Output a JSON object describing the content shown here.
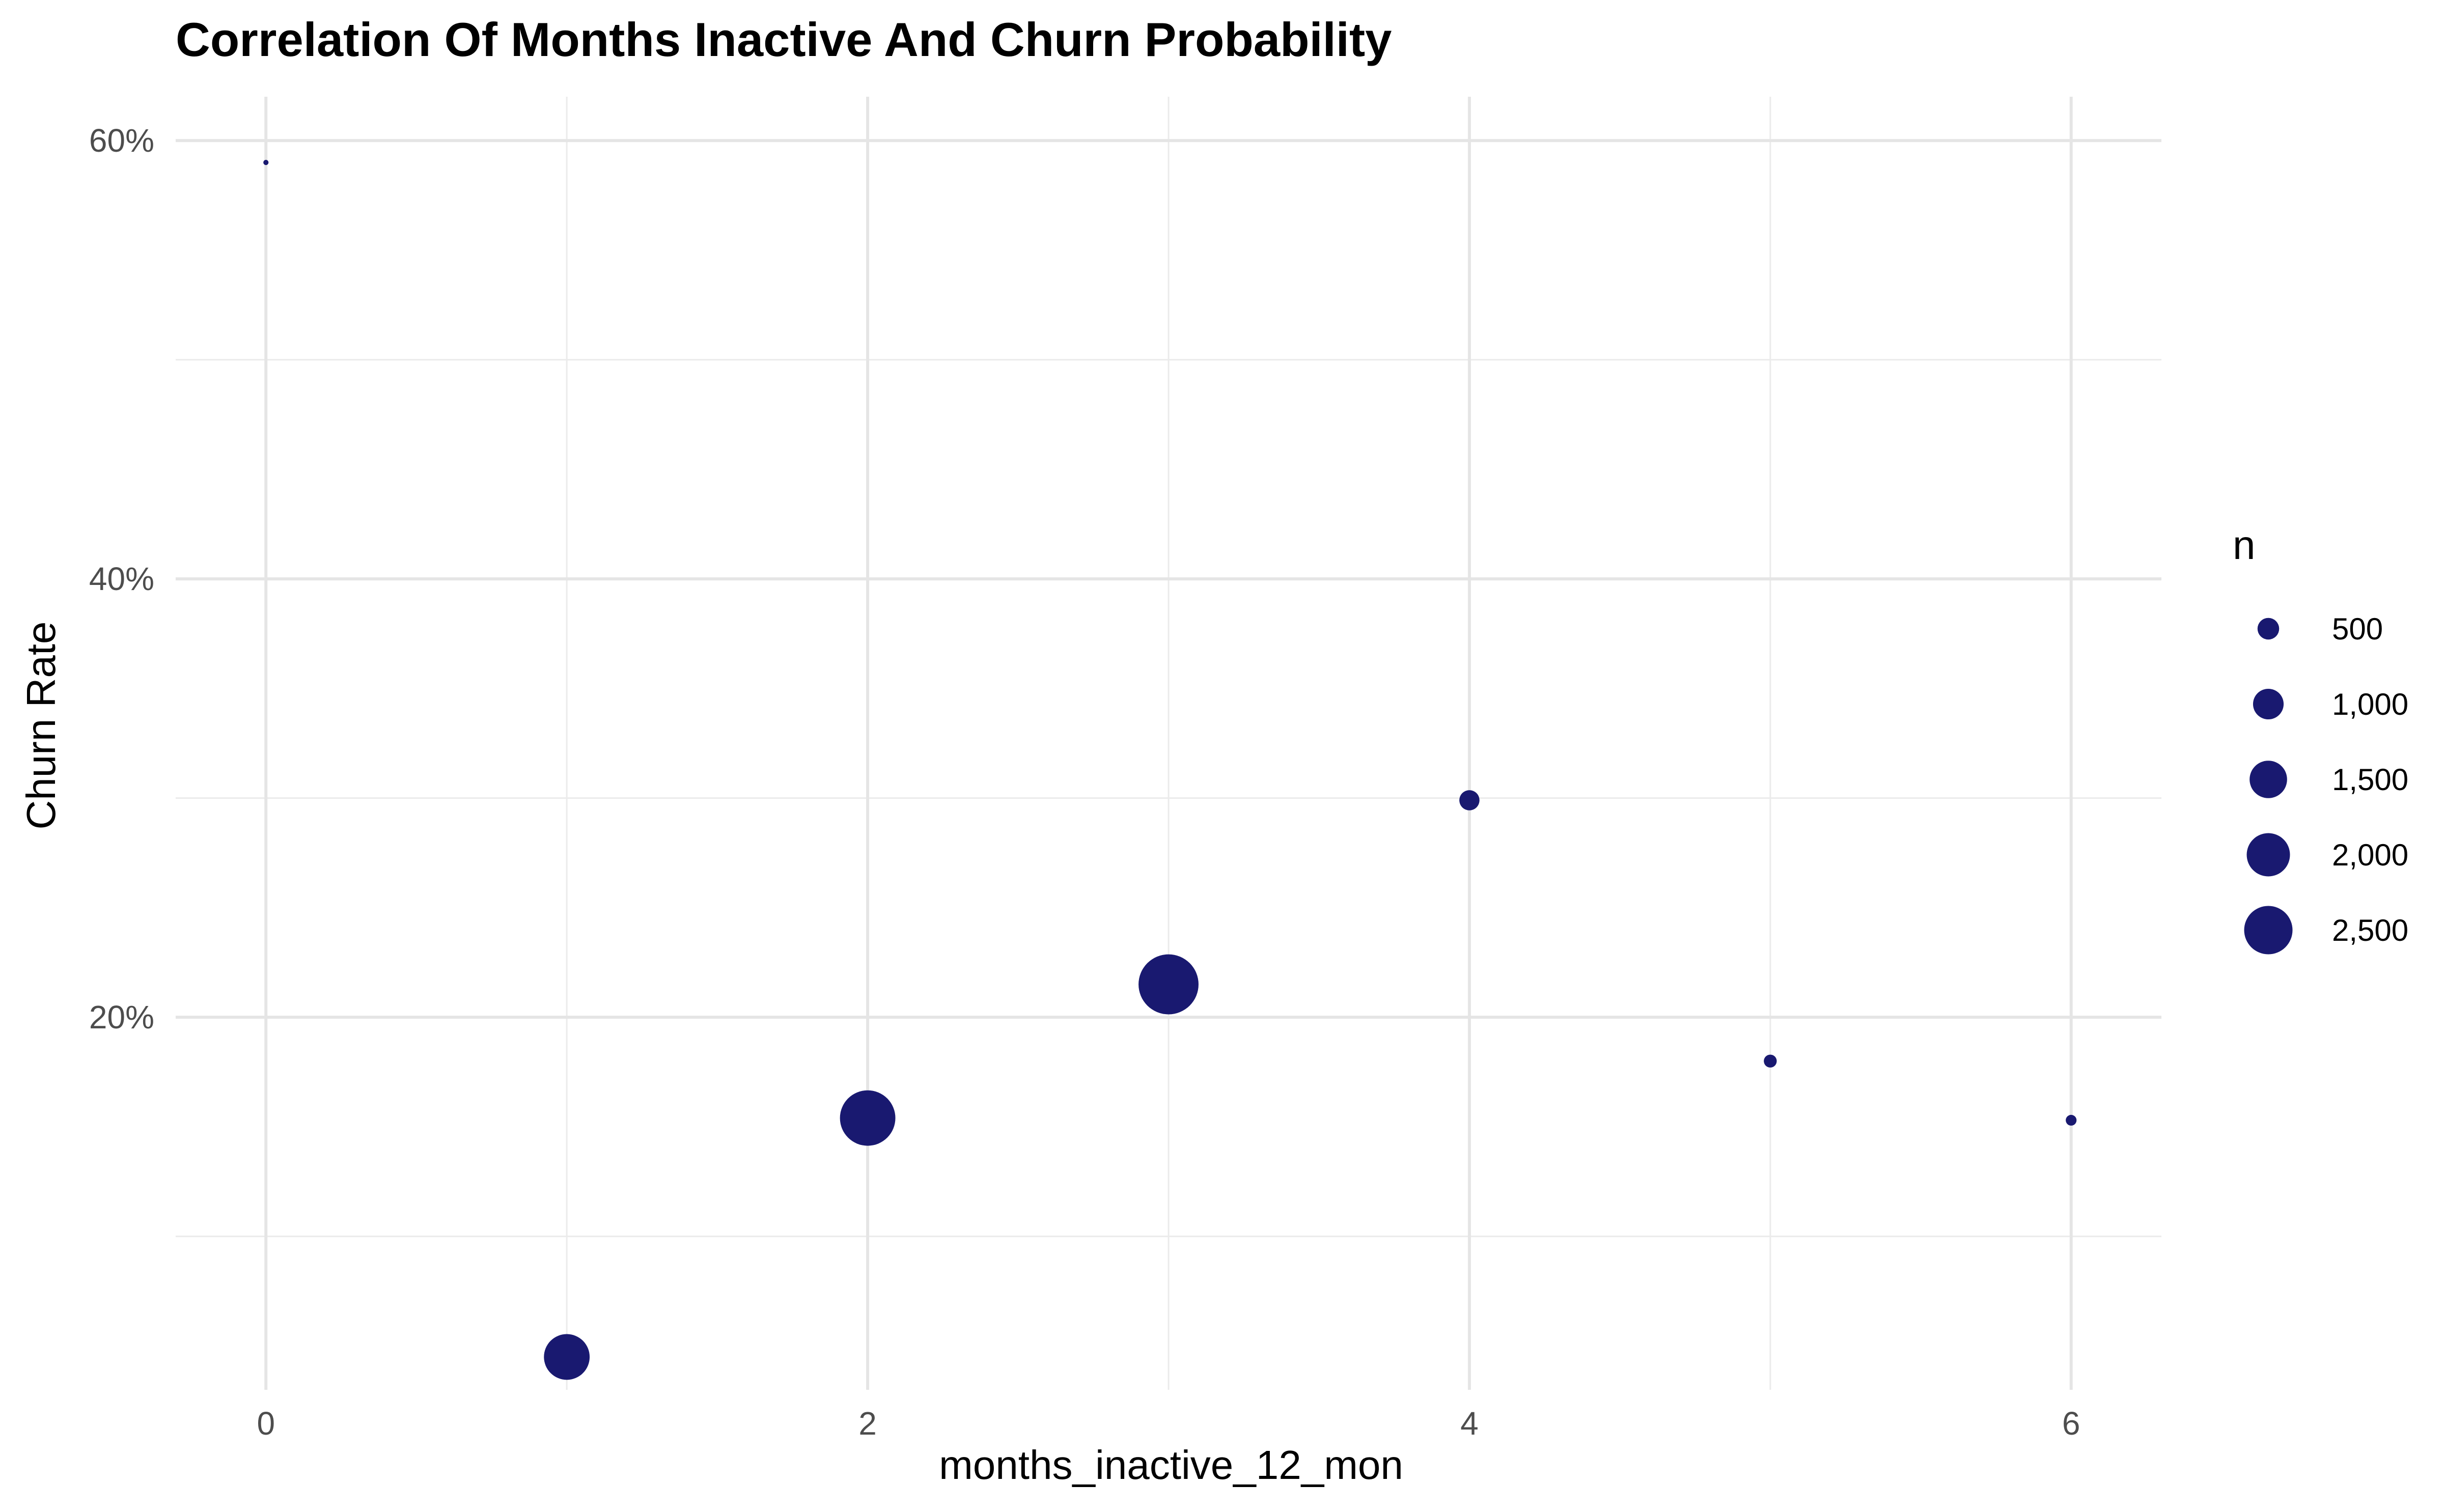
{
  "chart_data": {
    "type": "scatter",
    "title": "Correlation Of Months Inactive And Churn Probability",
    "xlabel": "months_inactive_12_mon",
    "ylabel": "Churn Rate",
    "xlim": [
      -0.3,
      6.3
    ],
    "ylim": [
      0.03,
      0.62
    ],
    "x_ticks": [
      0,
      2,
      4,
      6
    ],
    "x_tick_labels": [
      "0",
      "2",
      "4",
      "6"
    ],
    "x_minor_ticks": [
      1,
      3,
      5
    ],
    "y_ticks": [
      0.2,
      0.4,
      0.6
    ],
    "y_tick_labels": [
      "20%",
      "40%",
      "60%"
    ],
    "y_minor_ticks": [
      0.1,
      0.3,
      0.5
    ],
    "grid": true,
    "point_color": "#191970",
    "points": [
      {
        "x": 0,
        "y": 0.59,
        "n": 29
      },
      {
        "x": 1,
        "y": 0.045,
        "n": 2233
      },
      {
        "x": 2,
        "y": 0.154,
        "n": 3282
      },
      {
        "x": 3,
        "y": 0.215,
        "n": 3846
      },
      {
        "x": 4,
        "y": 0.299,
        "n": 435
      },
      {
        "x": 5,
        "y": 0.18,
        "n": 178
      },
      {
        "x": 6,
        "y": 0.153,
        "n": 124
      }
    ],
    "legend": {
      "title": "n",
      "position": "right",
      "items": [
        {
          "label": "500",
          "n": 500
        },
        {
          "label": "1,000",
          "n": 1000
        },
        {
          "label": "1,500",
          "n": 1500
        },
        {
          "label": "2,000",
          "n": 2000
        },
        {
          "label": "2,500",
          "n": 2500
        }
      ]
    }
  }
}
